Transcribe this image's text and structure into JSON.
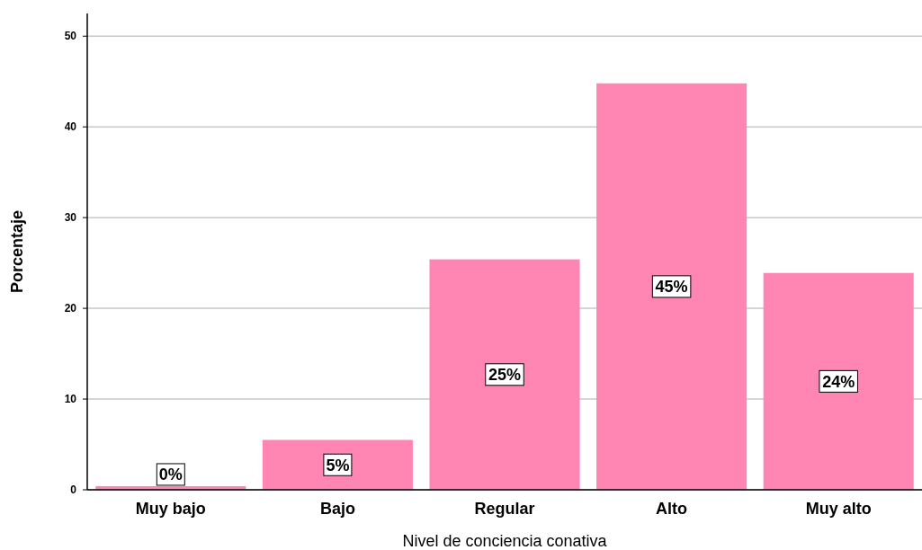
{
  "chart_data": {
    "type": "bar",
    "xlabel": "Nivel de conciencia conativa",
    "ylabel": "Porcentaje",
    "categories": [
      "Muy bajo",
      "Bajo",
      "Regular",
      "Alto",
      "Muy alto"
    ],
    "values": [
      0.4,
      5.5,
      25.4,
      44.8,
      23.9
    ],
    "value_labels": [
      "0%",
      "5%",
      "25%",
      "45%",
      "24%"
    ],
    "color": "#ff85b3",
    "ylim": [
      0,
      52.5
    ],
    "yticks": [
      0,
      10,
      20,
      30,
      40,
      50
    ],
    "grid": "y"
  }
}
